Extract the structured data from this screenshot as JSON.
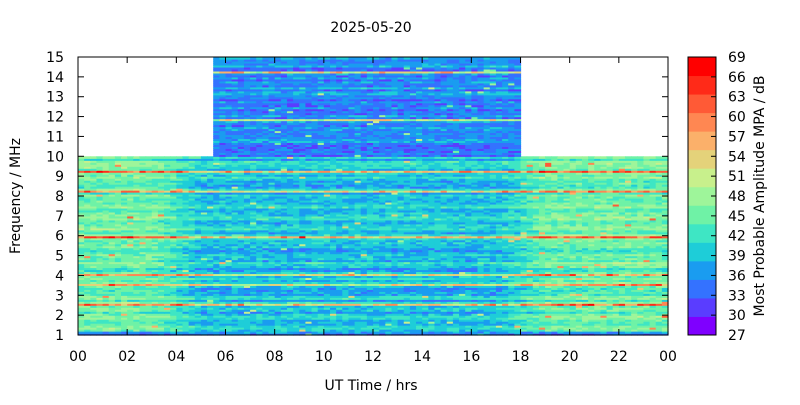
{
  "chart_data": {
    "type": "heatmap",
    "title": "2025-05-20",
    "xlabel": "UT Time / hrs",
    "ylabel": "Frequency / MHz",
    "xlim": [
      0,
      24
    ],
    "ylim": [
      1,
      15
    ],
    "x_ticks": [
      "00",
      "02",
      "04",
      "06",
      "08",
      "10",
      "12",
      "14",
      "16",
      "18",
      "20",
      "22",
      "00"
    ],
    "y_ticks": [
      "1",
      "2",
      "3",
      "4",
      "5",
      "6",
      "7",
      "8",
      "9",
      "10",
      "11",
      "12",
      "13",
      "14",
      "15"
    ],
    "colorbar": {
      "label": "Most Probable Amplitude MPA / dB",
      "min": 27,
      "max": 69,
      "ticks": [
        "27",
        "30",
        "33",
        "36",
        "39",
        "42",
        "45",
        "48",
        "51",
        "54",
        "57",
        "60",
        "63",
        "66",
        "69"
      ],
      "colors": [
        "#7f00ff",
        "#5a3dff",
        "#3472ff",
        "#1a9cf0",
        "#1ecdd8",
        "#3ee6c4",
        "#6ff2a6",
        "#9ef59a",
        "#c8f08c",
        "#e4d27a",
        "#fbb06a",
        "#ff8752",
        "#ff5a36",
        "#ff2a18",
        "#ff0000"
      ]
    },
    "coverage": [
      {
        "label": "1–10 MHz",
        "freq_range": [
          1,
          10
        ],
        "time_range": [
          0,
          24
        ]
      },
      {
        "label": "10–15 MHz",
        "freq_range": [
          10,
          15
        ],
        "time_range": [
          5.5,
          18
        ]
      }
    ],
    "typical_level_db": {
      "1–10 MHz (day)": 39,
      "1–10 MHz (night)": 45,
      "10–15 MHz": 36
    },
    "notable_bands_mhz": [
      2.5,
      3.5,
      4.0,
      5.9,
      8.2,
      9.2,
      11.8,
      14.2
    ]
  }
}
